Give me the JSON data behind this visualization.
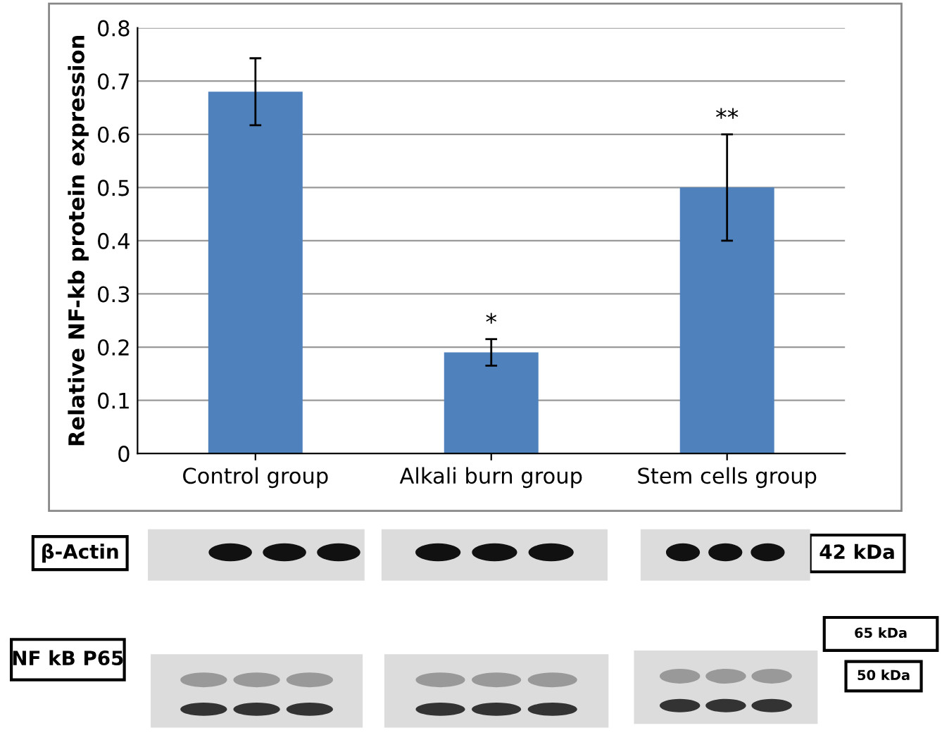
{
  "chart_data": {
    "type": "bar",
    "ylabel": "Relative NF-kb protein expression",
    "categories": [
      "Control group",
      "Alkali burn group",
      "Stem cells group"
    ],
    "values": [
      0.68,
      0.19,
      0.5
    ],
    "errors": [
      0.063,
      0.025,
      0.1
    ],
    "color": "#4f81bd",
    "ylim": [
      0,
      0.8
    ],
    "yticks": [
      0,
      0.1,
      0.2,
      0.3,
      0.4,
      0.5,
      0.6,
      0.7,
      0.8
    ],
    "grid": "y",
    "annotations": [
      {
        "text": "*",
        "x": "Alkali burn group",
        "y": 0.215
      },
      {
        "text": "**",
        "x": "Stem cells group",
        "y": 0.6
      },
      "β-Actin",
      "42 kDa",
      "NF kB P65",
      "65 kDa",
      "50 kDa"
    ]
  }
}
